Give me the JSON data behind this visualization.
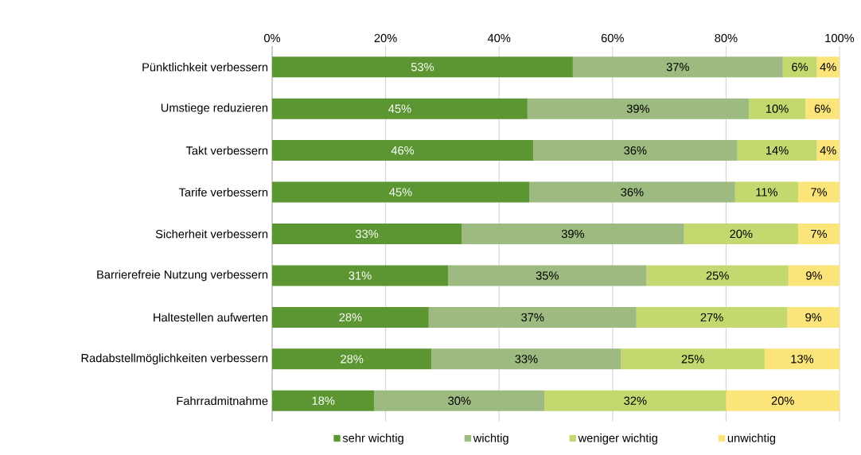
{
  "chart_data": {
    "type": "bar",
    "orientation": "horizontal",
    "stacked": true,
    "categories": [
      "Pünktlichkeit verbessern",
      "Umstiege reduzieren",
      "Takt verbessern",
      "Tarife verbessern",
      "Sicherheit verbessern",
      "Barrierefreie Nutzung verbessern",
      "Haltestellen aufwerten",
      "Radabstellmöglichkeiten verbessern",
      "Fahrradmitnahme"
    ],
    "series": [
      {
        "name": "sehr wichtig",
        "color": "#5b9632",
        "values": [
          53,
          45,
          46,
          45.3,
          33.4,
          31,
          27.6,
          28.1,
          18
        ],
        "value_labels": [
          "53%",
          "45%",
          "46%",
          "45%",
          "33%",
          "31%",
          "28%",
          "28%",
          "18%"
        ]
      },
      {
        "name": "wichtig",
        "color": "#9dbb80",
        "values": [
          37,
          39,
          36,
          36.3,
          39.2,
          35,
          36.6,
          33.4,
          30
        ],
        "value_labels": [
          "37%",
          "39%",
          "36%",
          "36%",
          "39%",
          "35%",
          "37%",
          "33%",
          "30%"
        ]
      },
      {
        "name": "weniger wichtig",
        "color": "#c3d96f",
        "values": [
          6,
          10,
          14,
          11.1,
          20.1,
          25,
          26.6,
          25.3,
          32
        ],
        "value_labels": [
          "6%",
          "10%",
          "14%",
          "11%",
          "20%",
          "25%",
          "27%",
          "25%",
          "32%"
        ]
      },
      {
        "name": "unwichtig",
        "color": "#fbe57a",
        "values": [
          4,
          6,
          4,
          7.3,
          7.3,
          9,
          9.2,
          13.2,
          20
        ],
        "value_labels": [
          "4%",
          "6%",
          "4%",
          "7%",
          "7%",
          "9%",
          "9%",
          "13%",
          "20%"
        ]
      }
    ],
    "xlim": [
      0,
      100
    ],
    "xticks": [
      {
        "value": 0,
        "label": "0%"
      },
      {
        "value": 20,
        "label": "20%"
      },
      {
        "value": 40,
        "label": "40%"
      },
      {
        "value": 60,
        "label": "60%"
      },
      {
        "value": 80,
        "label": "80%"
      },
      {
        "value": 100,
        "label": "100%"
      }
    ],
    "grid": "x",
    "legend": "bottom"
  }
}
